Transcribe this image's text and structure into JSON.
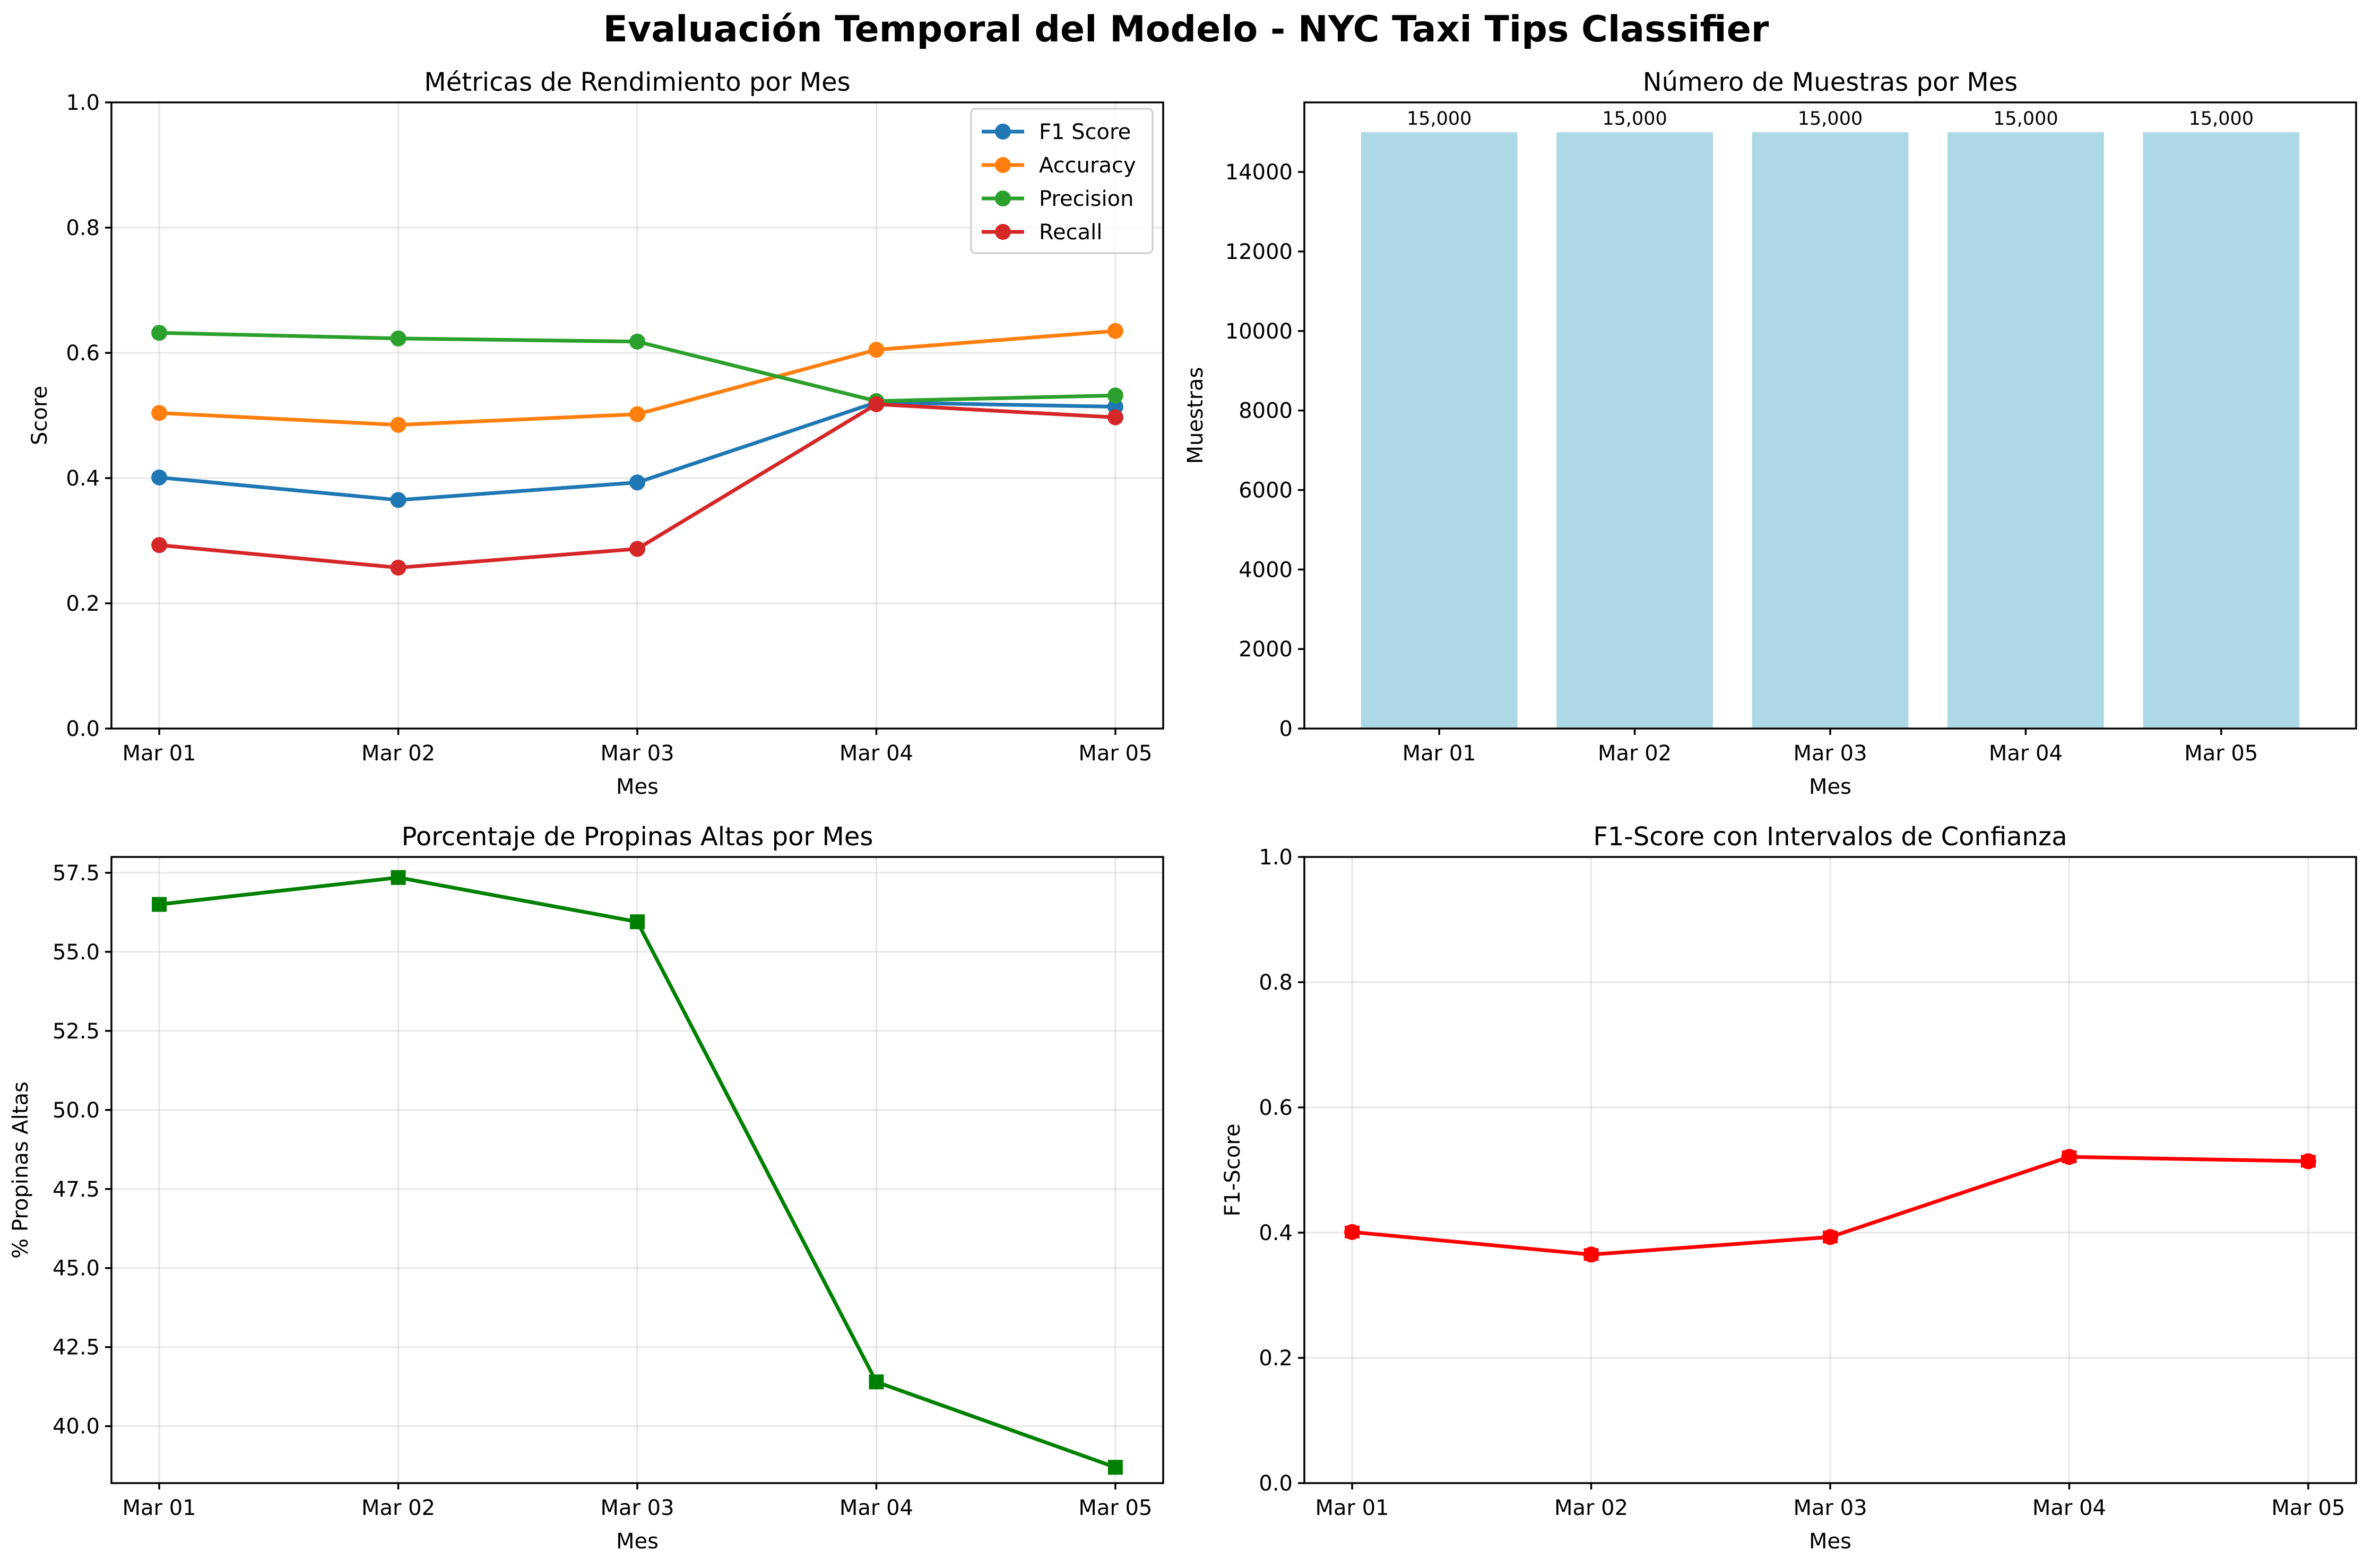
{
  "figure": {
    "suptitle": "Evaluación Temporal del Modelo - NYC Taxi Tips Classifier"
  },
  "chart_data": [
    {
      "id": "metrics",
      "type": "line",
      "title": "Métricas de Rendimiento por Mes",
      "xlabel": "Mes",
      "ylabel": "Score",
      "categories": [
        "Mar 01",
        "Mar 02",
        "Mar 03",
        "Mar 04",
        "Mar 05"
      ],
      "ylim": [
        0,
        1.0
      ],
      "yticks": [
        0.0,
        0.2,
        0.4,
        0.6,
        0.8,
        1.0
      ],
      "ytick_labels": [
        "0.0",
        "0.2",
        "0.4",
        "0.6",
        "0.8",
        "1.0"
      ],
      "grid": true,
      "legend": "top-right",
      "series": [
        {
          "name": "F1 Score",
          "color": "#1f77b4",
          "marker": "circle",
          "values": [
            0.401,
            0.365,
            0.393,
            0.521,
            0.514
          ]
        },
        {
          "name": "Accuracy",
          "color": "#ff7f0e",
          "marker": "circle",
          "values": [
            0.504,
            0.485,
            0.502,
            0.605,
            0.635
          ]
        },
        {
          "name": "Precision",
          "color": "#2ca02c",
          "marker": "circle",
          "values": [
            0.632,
            0.623,
            0.618,
            0.523,
            0.532
          ]
        },
        {
          "name": "Recall",
          "color": "#d62728",
          "marker": "circle",
          "values": [
            0.293,
            0.257,
            0.287,
            0.518,
            0.497
          ]
        }
      ]
    },
    {
      "id": "samples",
      "type": "bar",
      "title": "Número de Muestras por Mes",
      "xlabel": "Mes",
      "ylabel": "Muestras",
      "categories": [
        "Mar 01",
        "Mar 02",
        "Mar 03",
        "Mar 04",
        "Mar 05"
      ],
      "values": [
        15000,
        15000,
        15000,
        15000,
        15000
      ],
      "value_labels": [
        "15,000",
        "15,000",
        "15,000",
        "15,000",
        "15,000"
      ],
      "ylim": [
        0,
        15750
      ],
      "yticks": [
        0,
        2000,
        4000,
        6000,
        8000,
        10000,
        12000,
        14000
      ],
      "ytick_labels": [
        "0",
        "2000",
        "4000",
        "6000",
        "8000",
        "10000",
        "12000",
        "14000"
      ],
      "grid": false,
      "bar_color": "#add8e6"
    },
    {
      "id": "tips",
      "type": "line",
      "title": "Porcentaje de Propinas Altas por Mes",
      "xlabel": "Mes",
      "ylabel": "% Propinas Altas",
      "categories": [
        "Mar 01",
        "Mar 02",
        "Mar 03",
        "Mar 04",
        "Mar 05"
      ],
      "ylim": [
        38.2,
        58.0
      ],
      "yticks": [
        40.0,
        42.5,
        45.0,
        47.5,
        50.0,
        52.5,
        55.0,
        57.5
      ],
      "ytick_labels": [
        "40.0",
        "42.5",
        "45.0",
        "47.5",
        "50.0",
        "52.5",
        "55.0",
        "57.5"
      ],
      "grid": true,
      "series": [
        {
          "color": "#008000",
          "marker": "square",
          "values": [
            56.5,
            57.35,
            55.95,
            41.4,
            38.7
          ]
        }
      ]
    },
    {
      "id": "f1ci",
      "type": "line",
      "title": "F1-Score con Intervalos de Confianza",
      "xlabel": "Mes",
      "ylabel": "F1-Score",
      "categories": [
        "Mar 01",
        "Mar 02",
        "Mar 03",
        "Mar 04",
        "Mar 05"
      ],
      "ylim": [
        0,
        1.0
      ],
      "yticks": [
        0.0,
        0.2,
        0.4,
        0.6,
        0.8,
        1.0
      ],
      "ytick_labels": [
        "0.0",
        "0.2",
        "0.4",
        "0.6",
        "0.8",
        "1.0"
      ],
      "grid": true,
      "series": [
        {
          "color": "#ff0000",
          "marker": "circle",
          "values": [
            0.401,
            0.365,
            0.393,
            0.521,
            0.514
          ],
          "error": [
            0.008,
            0.008,
            0.008,
            0.008,
            0.008
          ]
        }
      ]
    }
  ]
}
